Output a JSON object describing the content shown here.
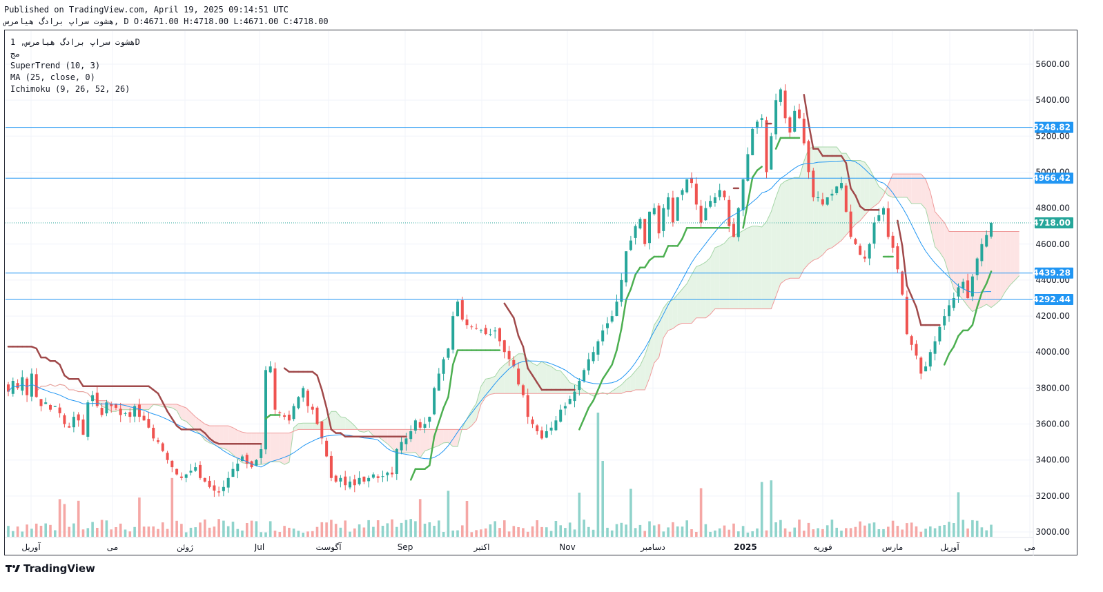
{
  "header": {
    "published": "Published on TradingView.com, April 19, 2025 09:14:51 UTC",
    "ohlc_line": "هشوت سراپ برادگ هیامرس, D O:4671.00 H:4718.00 L:4671.00 C:4718.00"
  },
  "legend": {
    "symbol": "هشوت سراپ برادگ هیامرس, 1D",
    "sub": "مج",
    "indicators": [
      "SuperTrend (10, 3)",
      "MA (25, close, 0)",
      "Ichimoku (9, 26, 52, 26)"
    ]
  },
  "logo": {
    "text": "TradingView"
  },
  "colors": {
    "up": "#26a69a",
    "down": "#ef5350",
    "hline": "#2196f3",
    "ma": "#2196f3",
    "st_up": "#4caf50",
    "st_down": "#a0494a",
    "kumo_bull": "#e6f4e6",
    "kumo_bear": "#fde4e4",
    "label_bg": "#2196f3",
    "last_bg": "#26a69a"
  },
  "chart_data": {
    "type": "candlestick",
    "ylim": [
      2980,
      5760
    ],
    "y_ticks": [
      3000,
      3200,
      3400,
      3600,
      3800,
      4000,
      4200,
      4400,
      4600,
      4800,
      5000,
      5200,
      5400,
      5600
    ],
    "x_labels": [
      "آوریل",
      "می",
      "ژوئن",
      "Jul",
      "آگوست",
      "Sep",
      "اکتبر",
      "Nov",
      "دسامبر",
      "2025",
      "فوریه",
      "مارس",
      "آوریل",
      "می"
    ],
    "horizontal_levels": [
      5248.82,
      4966.42,
      4439.28,
      4292.44
    ],
    "last_price": 4718.0,
    "closes": [
      3780,
      3840,
      3800,
      3860,
      3760,
      3880,
      3750,
      3700,
      3720,
      3680,
      3700,
      3660,
      3600,
      3580,
      3640,
      3620,
      3540,
      3720,
      3760,
      3700,
      3650,
      3720,
      3700,
      3690,
      3650,
      3660,
      3640,
      3700,
      3640,
      3620,
      3580,
      3520,
      3500,
      3450,
      3400,
      3360,
      3320,
      3300,
      3320,
      3340,
      3360,
      3300,
      3280,
      3250,
      3230,
      3220,
      3250,
      3300,
      3350,
      3380,
      3420,
      3380,
      3360,
      3400,
      3460,
      3900,
      3920,
      3680,
      3660,
      3640,
      3620,
      3700,
      3750,
      3800,
      3700,
      3680,
      3600,
      3520,
      3420,
      3300,
      3280,
      3300,
      3260,
      3280,
      3260,
      3300,
      3280,
      3300,
      3320,
      3300,
      3310,
      3330,
      3320,
      3460,
      3500,
      3520,
      3560,
      3620,
      3580,
      3600,
      3640,
      3800,
      3880,
      3960,
      4020,
      4200,
      4280,
      4180,
      4150,
      4140,
      4130,
      4120,
      4100,
      4100,
      4120,
      4060,
      4000,
      3960,
      3920,
      3820,
      3760,
      3640,
      3600,
      3560,
      3520,
      3560,
      3580,
      3620,
      3680,
      3700,
      3740,
      3780,
      3840,
      3900,
      3960,
      4000,
      4060,
      4120,
      4160,
      4200,
      4280,
      4400,
      4560,
      4620,
      4700,
      4740,
      4600,
      4780,
      4800,
      4660,
      4800,
      4860,
      4720,
      4860,
      4900,
      4960,
      4940,
      4820,
      4720,
      4800,
      4840,
      4860,
      4900,
      4860,
      4700,
      4640,
      4800,
      4960,
      5100,
      5240,
      5280,
      5300,
      5000,
      5200,
      5400,
      5460,
      5300,
      5220,
      5340,
      5300,
      5160,
      5000,
      4860,
      4860,
      4820,
      4860,
      4880,
      4920,
      4940,
      4780,
      4640,
      4600,
      4540,
      4520,
      4600,
      4720,
      4760,
      4800,
      4640,
      4580,
      4460,
      4320,
      4100,
      4040,
      3980,
      3880,
      3920,
      4000,
      4060,
      4140,
      4200,
      4260,
      4300,
      4360,
      4390,
      4300,
      4420,
      4520,
      4600,
      4650,
      4718
    ]
  }
}
